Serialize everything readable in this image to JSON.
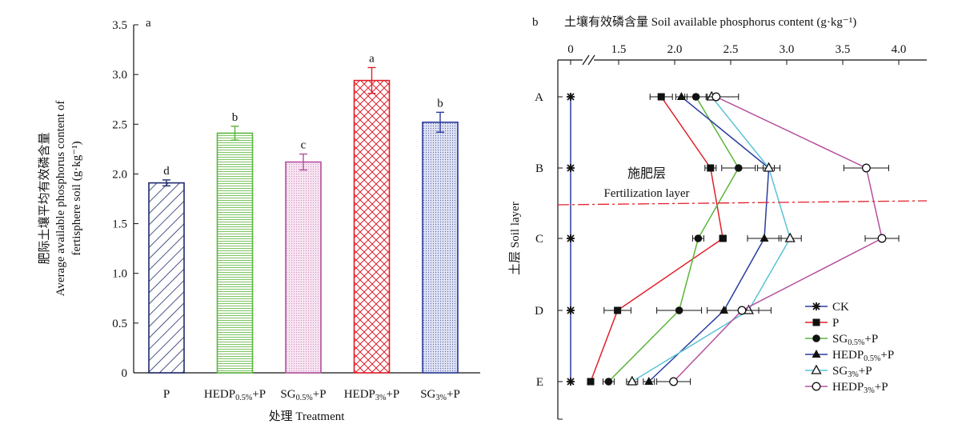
{
  "chart_data": [
    {
      "type": "bar",
      "panel_label": "a",
      "ylabel": "肥际土壤平均有效磷含量",
      "ylabel_en_1": "Average available phosphorus content of",
      "ylabel_en_2": "fertisphere soil (g·kg⁻¹)",
      "xlabel": "处理 Treatment",
      "ylim": [
        0,
        3.5
      ],
      "yticks": [
        "0",
        "0.5",
        "1.0",
        "1.5",
        "2.0",
        "2.5",
        "3.0",
        "3.5"
      ],
      "categories": [
        "P",
        "HEDP0.5%+P",
        "SG0.5%+P",
        "HEDP3%+P",
        "SG3%+P"
      ],
      "category_labels": [
        {
          "base": "P",
          "sub": "",
          "suffix": ""
        },
        {
          "base": "HEDP",
          "sub": "0.5%",
          "suffix": "+P"
        },
        {
          "base": "SG",
          "sub": "0.5%",
          "suffix": "+P"
        },
        {
          "base": "HEDP",
          "sub": "3%",
          "suffix": "+P"
        },
        {
          "base": "SG",
          "sub": "3%",
          "suffix": "+P"
        }
      ],
      "values": [
        1.91,
        2.41,
        2.12,
        2.94,
        2.52
      ],
      "errors": [
        0.03,
        0.07,
        0.08,
        0.13,
        0.1
      ],
      "letters": [
        "d",
        "b",
        "c",
        "a",
        "b"
      ],
      "colors": [
        "#1f2a6b",
        "#5ab53a",
        "#b5509e",
        "#e0202a",
        "#2a3c9c"
      ]
    },
    {
      "type": "line",
      "panel_label": "b",
      "title_top": "土壤有效磷含量 Soil available phosphorus content (g·kg⁻¹)",
      "ylabel": "土层 Soil layer",
      "xticks": [
        "0",
        "1.5",
        "2.0",
        "2.5",
        "3.0",
        "3.5",
        "4.0"
      ],
      "xlim_broken": [
        1.0,
        4.2
      ],
      "layers": [
        "A",
        "B",
        "C",
        "D",
        "E"
      ],
      "annotation_cn": "施肥层",
      "annotation_en": "Fertilization layer",
      "series": [
        {
          "name": "CK",
          "sub": "",
          "marker": "star",
          "color": "#2a3c9c",
          "values": [
            0,
            0,
            0,
            0,
            0
          ],
          "errors": [
            0,
            0,
            0,
            0,
            0
          ]
        },
        {
          "name": "P",
          "sub": "",
          "marker": "square",
          "color": "#e0202a",
          "values": [
            1.88,
            2.32,
            2.43,
            1.49,
            1.25
          ],
          "errors": [
            0.1,
            0.05,
            0.03,
            0.12,
            0.02
          ]
        },
        {
          "name": "SG",
          "sub": "0.5%",
          "suffix": "+P",
          "marker": "circle",
          "color": "#5ab53a",
          "values": [
            2.19,
            2.57,
            2.21,
            2.04,
            1.41
          ],
          "errors": [
            0.1,
            0.15,
            0.05,
            0.2,
            0.05
          ]
        },
        {
          "name": "HEDP",
          "sub": "0.5%",
          "suffix": "+P",
          "marker": "triangle",
          "color": "#2a3c9c",
          "values": [
            2.06,
            2.84,
            2.8,
            2.44,
            1.77
          ],
          "errors": [
            0.05,
            0.05,
            0.15,
            0.15,
            0.05
          ]
        },
        {
          "name": "SG",
          "sub": "3%",
          "suffix": "+P",
          "marker": "triangle-open",
          "color": "#5bc3d6",
          "values": [
            2.33,
            2.84,
            3.03,
            2.66,
            1.62
          ],
          "errors": [
            0.05,
            0.1,
            0.1,
            0.2,
            0.05
          ]
        },
        {
          "name": "HEDP",
          "sub": "3%",
          "suffix": "+P",
          "marker": "circle-open",
          "color": "#b5509e",
          "values": [
            2.37,
            3.71,
            3.85,
            2.6,
            1.99
          ],
          "errors": [
            0.2,
            0.2,
            0.15,
            0.15,
            0.15
          ]
        }
      ]
    }
  ]
}
